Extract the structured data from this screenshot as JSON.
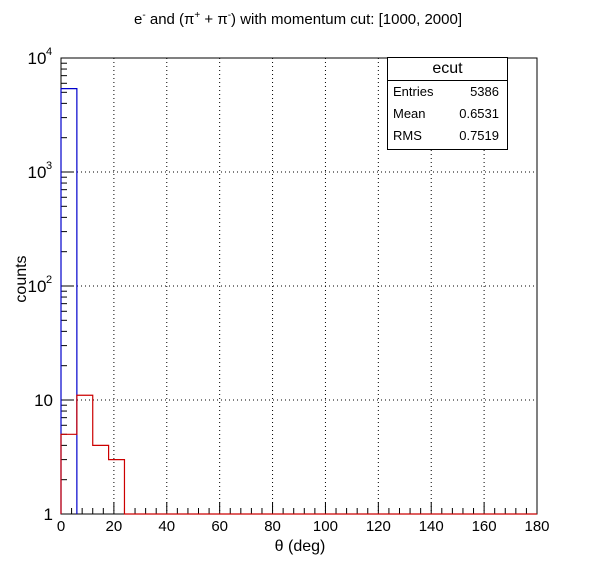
{
  "title": {
    "prefix": "e",
    "minus1": "-",
    "mid1": " and (π",
    "plus": "+",
    "mid2": " + π",
    "minus2": "-",
    "suffix": ") with momentum cut: [1000, 2000]"
  },
  "stats_box": {
    "name": "ecut",
    "entries_label": "Entries",
    "entries_value": "5386",
    "mean_label": "Mean",
    "mean_value": "0.6531",
    "rms_label": "RMS",
    "rms_value": "0.7519"
  },
  "chart_data": {
    "type": "histogram",
    "title": "e- and (π+ + π-) with momentum cut: [1000, 2000]",
    "xlabel": "θ (deg)",
    "ylabel": "counts",
    "xlim": [
      0,
      180
    ],
    "ylim": [
      1,
      10000
    ],
    "yscale": "log",
    "grid": true,
    "x_ticks": [
      0,
      20,
      40,
      60,
      80,
      100,
      120,
      140,
      160,
      180
    ],
    "y_ticks": [
      {
        "value": 1,
        "label": "1"
      },
      {
        "value": 10,
        "label": "10"
      },
      {
        "value": 100,
        "label": "10",
        "exp": "2"
      },
      {
        "value": 1000,
        "label": "10",
        "exp": "3"
      },
      {
        "value": 10000,
        "label": "10",
        "exp": "4"
      }
    ],
    "bin_width": 6,
    "series": [
      {
        "color": "#0000cc",
        "bin_edges": [
          0,
          6
        ],
        "values": [
          5386
        ]
      },
      {
        "color": "#cc0000",
        "bin_edges": [
          0,
          6,
          12,
          18,
          24,
          180
        ],
        "values": [
          5,
          11,
          4,
          3,
          1
        ]
      }
    ]
  }
}
